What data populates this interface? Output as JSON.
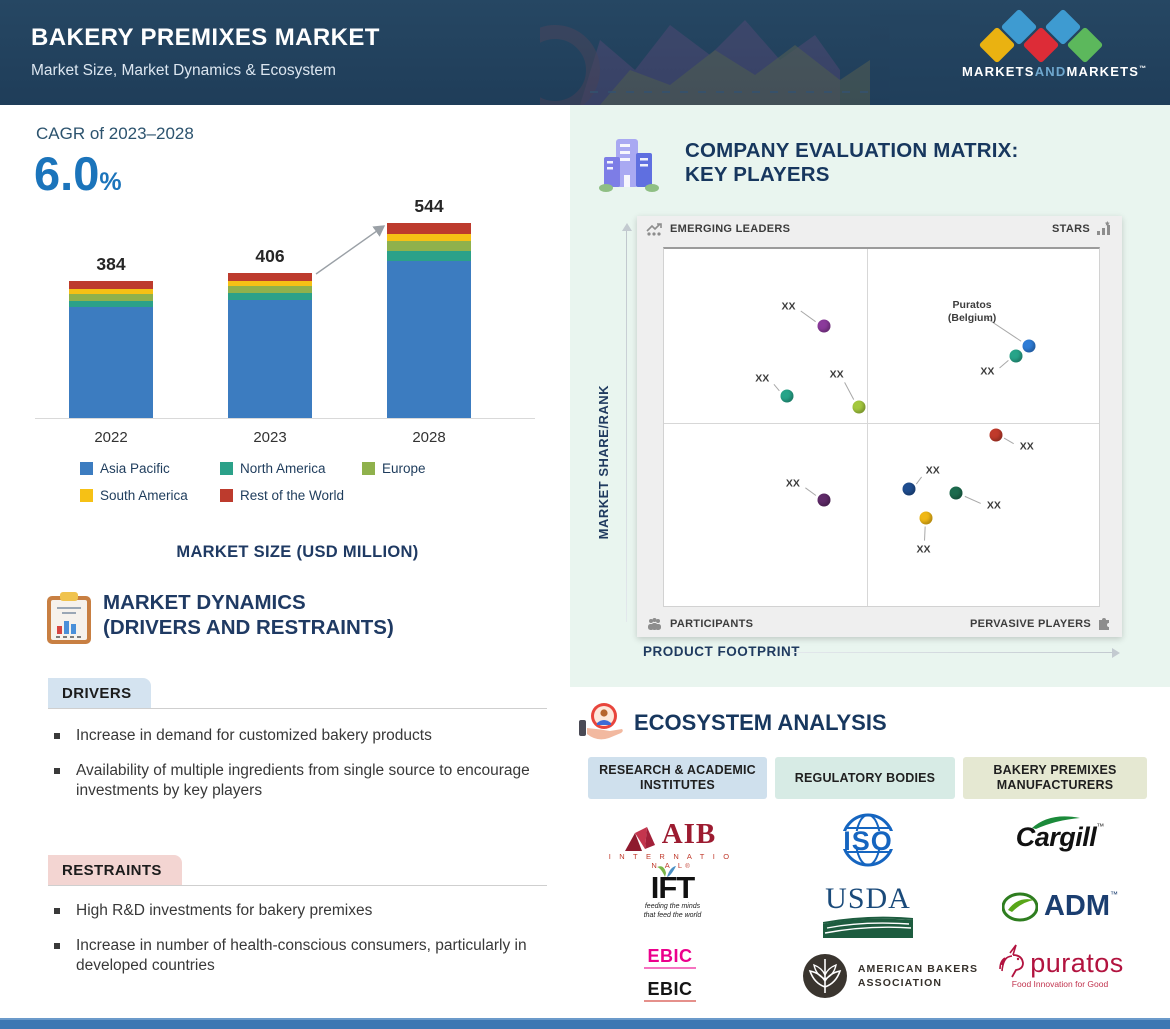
{
  "header": {
    "title": "BAKERY PREMIXES MARKET",
    "subtitle": "Market Size, Market Dynamics & Ecosystem",
    "brand_left": "MARKETS",
    "brand_mid": "AND",
    "brand_right": "MARKETS",
    "brand_tm": "™"
  },
  "market_size": {
    "cagr_label": "CAGR of 2023–2028",
    "cagr_value": "6.0",
    "cagr_unit": "%",
    "axis_title": "MARKET SIZE (USD MILLION)"
  },
  "chart_data": [
    {
      "type": "bar",
      "stacked": true,
      "title": "MARKET SIZE (USD MILLION)",
      "categories": [
        "2022",
        "2023",
        "2028"
      ],
      "totals": [
        384,
        406,
        544
      ],
      "cagr": "6.0% (2023–2028)",
      "series": [
        {
          "name": "Asia Pacific",
          "color": "#3C7CC0",
          "share_pct": [
            81.5,
            81.0,
            81.0
          ]
        },
        {
          "name": "North America",
          "color": "#2BA189",
          "share_pct": [
            4.5,
            5.0,
            5.0
          ]
        },
        {
          "name": "Europe",
          "color": "#8FB14C",
          "share_pct": [
            5.0,
            5.0,
            5.0
          ]
        },
        {
          "name": "South America",
          "color": "#F6C115",
          "share_pct": [
            3.5,
            3.5,
            3.5
          ]
        },
        {
          "name": "Rest of the World",
          "color": "#BD3B2D",
          "share_pct": [
            5.5,
            5.5,
            5.5
          ]
        }
      ],
      "legend_position": "bottom",
      "grid": false
    },
    {
      "type": "scatter",
      "title": "COMPANY EVALUATION MATRIX: KEY PLAYERS",
      "xlabel": "PRODUCT FOOTPRINT",
      "ylabel": "MARKET SHARE/RANK",
      "quadrants": [
        "EMERGING LEADERS",
        "STARS",
        "PARTICIPANTS",
        "PERVASIVE PLAYERS"
      ],
      "xlim": [
        0,
        100
      ],
      "ylim": [
        0,
        100
      ],
      "points": [
        {
          "x": 36.5,
          "y": 21.4,
          "color": "#8B3A9B",
          "label": "XX",
          "lx": 28.5,
          "ly": 16.0
        },
        {
          "x": 28.1,
          "y": 40.8,
          "color": "#27A489",
          "label": "XX",
          "lx": 22.5,
          "ly": 36.2
        },
        {
          "x": 44.6,
          "y": 43.9,
          "color": "#A4C83E",
          "label": "XX",
          "lx": 39.5,
          "ly": 35.0
        },
        {
          "x": 83.5,
          "y": 26.9,
          "color": "#2E7CD6",
          "label": "Puratos\n(Belgium)",
          "lx": 70.5,
          "ly": 17.5
        },
        {
          "x": 80.6,
          "y": 29.7,
          "color": "#27A489",
          "label": "XX",
          "lx": 74.0,
          "ly": 34.3
        },
        {
          "x": 75.9,
          "y": 51.6,
          "color": "#C03A2B",
          "label": "XX",
          "lx": 83.0,
          "ly": 55.0
        },
        {
          "x": 36.6,
          "y": 69.6,
          "color": "#5F2A68",
          "label": "XX",
          "lx": 29.5,
          "ly": 65.2
        },
        {
          "x": 56.1,
          "y": 66.8,
          "color": "#1F4D8F",
          "label": "XX",
          "lx": 61.5,
          "ly": 61.8
        },
        {
          "x": 66.9,
          "y": 67.9,
          "color": "#1D6B4E",
          "label": "XX",
          "lx": 75.5,
          "ly": 71.5
        },
        {
          "x": 59.9,
          "y": 74.6,
          "color": "#F0B816",
          "label": "XX",
          "lx": 59.4,
          "ly": 83.5
        }
      ]
    }
  ],
  "matrix_section": {
    "title_line1": "COMPANY EVALUATION MATRIX:",
    "title_line2": "KEY PLAYERS"
  },
  "dynamics": {
    "title_line1": "MARKET DYNAMICS",
    "title_line2": "(DRIVERS AND RESTRAINTS)",
    "drivers": {
      "label": "DRIVERS",
      "items": [
        "Increase in demand for customized bakery products",
        "Availability of multiple ingredients from single source to encourage investments by key players"
      ]
    },
    "restraints": {
      "label": "RESTRAINTS",
      "items": [
        "High R&D investments for bakery premixes",
        "Increase in number of health-conscious consumers, particularly in developed countries"
      ]
    }
  },
  "ecosystem": {
    "title": "ECOSYSTEM ANALYSIS",
    "columns": [
      {
        "header_line1": "RESEARCH & ACADEMIC",
        "header_line2": "INSTITUTES",
        "bg": "#cfe0ed"
      },
      {
        "header_line1": "REGULATORY BODIES",
        "header_line2": "",
        "bg": "#d7ebe5"
      },
      {
        "header_line1": "BAKERY PREMIXES",
        "header_line2": "MANUFACTURERS",
        "bg": "#e5e8d2"
      }
    ],
    "logos": {
      "aib": {
        "name": "AIB",
        "sub": "I N T E R N A T I O N A L",
        "reg": "®"
      },
      "ift": {
        "name": "IFT",
        "tag1": "feeding the minds",
        "tag2": "that feed the world"
      },
      "ebic_pink": {
        "name": "EBIC"
      },
      "ebic_black": {
        "name": "EBIC"
      },
      "iso": {
        "name": "ISO"
      },
      "usda": {
        "name": "USDA"
      },
      "aba": {
        "line1": "AMERICAN BAKERS",
        "line2": "ASSOCIATION"
      },
      "cargill": {
        "name": "Cargill",
        "tm": "™"
      },
      "adm": {
        "name": "ADM",
        "tm": "™"
      },
      "puratos": {
        "name": "puratos",
        "tag": "Food Innovation for Good"
      }
    }
  },
  "colors": {
    "header_navy": "#1f3d59",
    "accent_blue": "#1b74bb",
    "heading_navy": "#1f3a63",
    "mint_panel": "#e9f5ef",
    "drivers_chip": "#d4e3f0",
    "restraints_chip": "#f3d5d2",
    "footer_blue": "#3b77b3"
  }
}
